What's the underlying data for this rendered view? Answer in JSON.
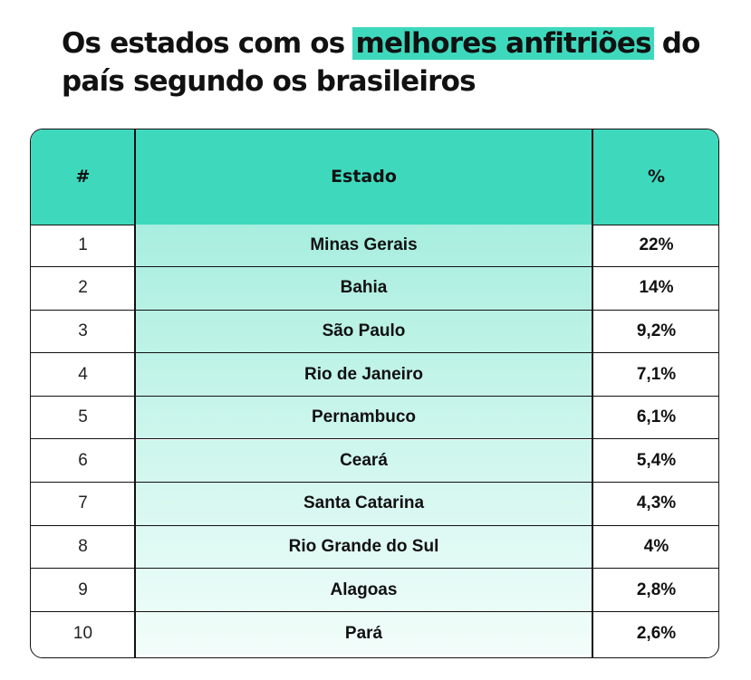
{
  "title": {
    "before": "Os estados com os ",
    "highlight": "melhores anfitriões",
    "after": " do país segundo os brasileiros"
  },
  "colors": {
    "accent": "#3ed9bd",
    "row_gradient_top": "#a8eedf",
    "row_gradient_bottom": "#f2fdfa"
  },
  "chart_data": {
    "type": "table",
    "title": "Os estados com os melhores anfitriões do país segundo os brasileiros",
    "columns": [
      "#",
      "Estado",
      "%"
    ],
    "rows": [
      {
        "rank": "1",
        "state": "Minas Gerais",
        "pct": "22%"
      },
      {
        "rank": "2",
        "state": "Bahia",
        "pct": "14%"
      },
      {
        "rank": "3",
        "state": "São Paulo",
        "pct": "9,2%"
      },
      {
        "rank": "4",
        "state": "Rio de Janeiro",
        "pct": "7,1%"
      },
      {
        "rank": "5",
        "state": "Pernambuco",
        "pct": "6,1%"
      },
      {
        "rank": "6",
        "state": "Ceará",
        "pct": "5,4%"
      },
      {
        "rank": "7",
        "state": "Santa Catarina",
        "pct": "4,3%"
      },
      {
        "rank": "8",
        "state": "Rio Grande do Sul",
        "pct": "4%"
      },
      {
        "rank": "9",
        "state": "Alagoas",
        "pct": "2,8%"
      },
      {
        "rank": "10",
        "state": "Pará",
        "pct": "2,6%"
      }
    ]
  }
}
